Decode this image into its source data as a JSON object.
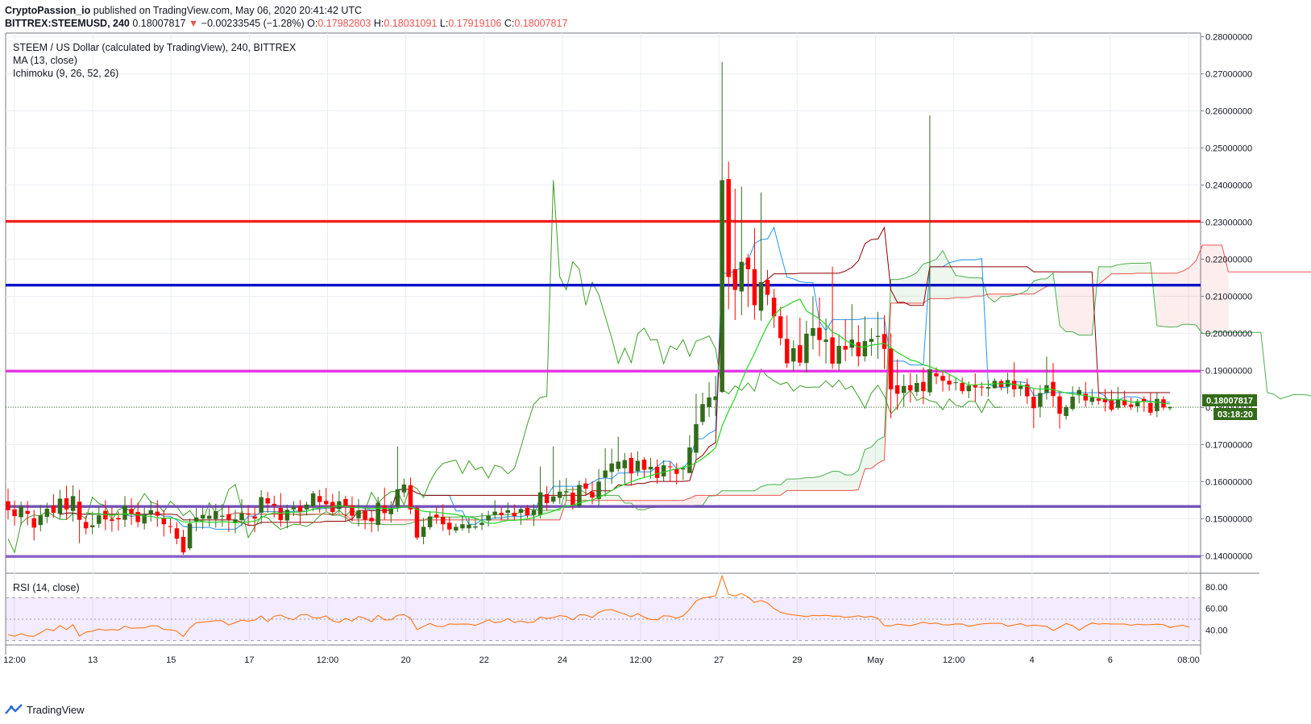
{
  "header": {
    "author": "CryptoPassion_io",
    "published": " published on TradingView.com, May 06, 2020 20:41:42 UTC",
    "symbol": "BITTREX:STEEMUSD, 240",
    "last": "0.18007817",
    "change": "−0.00233545 (−1.28%)",
    "o_label": "O:",
    "o_value": "0.17982803",
    "h_label": "H:",
    "h_value": "0.18031091",
    "l_label": "L:",
    "l_value": "0.17919106",
    "c_label": "C:",
    "c_value": "0.18007817"
  },
  "legend": {
    "title": "STEEM / US Dollar (calculated by TradingView), 240, BITTREX",
    "ma": "MA (13, close)",
    "ichimoku": "Ichimoku (9, 26, 52, 26)",
    "rsi": "RSI (14, close)"
  },
  "price_tag": "0.18007817",
  "countdown_tag": "03:18:20",
  "footer": {
    "brand": "TradingView"
  },
  "colors": {
    "up": "#336b1a",
    "down": "#ff0000",
    "ma": "#23d623",
    "tenkan": "#2196f3",
    "kijun": "#8b0000",
    "chikou": "#3f9e28",
    "spanA": "#4caf50",
    "spanB": "#ef5350",
    "rsi": "#ff6d00"
  },
  "chart_data": {
    "type": "candlestick",
    "symbol": "BITTREX:STEEMUSD",
    "timeframe": "240",
    "x_ticks": [
      "12:00",
      "13",
      "15",
      "17",
      "12:00",
      "20",
      "22",
      "24",
      "12:00",
      "27",
      "29",
      "May",
      "12:00",
      "4",
      "6",
      "08:00"
    ],
    "price_axis": {
      "ylim": [
        0.1355,
        0.281
      ],
      "ticks": [
        0.14,
        0.15,
        0.16,
        0.17,
        0.18,
        0.19,
        0.2,
        0.21,
        0.22,
        0.23,
        0.24,
        0.25,
        0.26,
        0.27,
        0.28
      ]
    },
    "price_axis_labels": [
      "0.14000000",
      "0.15000000",
      "0.16000000",
      "0.17000000",
      "0.18000000",
      "0.19000000",
      "0.20000000",
      "0.21000000",
      "0.22000000",
      "0.23000000",
      "0.24000000",
      "0.25000000",
      "0.26000000",
      "0.27000000",
      "0.28000000"
    ],
    "horizontal_levels": [
      {
        "price": 0.2302,
        "color": "#f21e1e"
      },
      {
        "price": 0.213,
        "color": "#0b12c7"
      },
      {
        "price": 0.1898,
        "color": "#e535e5"
      },
      {
        "price": 0.1533,
        "color": "#7350b8"
      },
      {
        "price": 0.1398,
        "color": "#8a5fc7"
      }
    ],
    "last_price": 0.18007817,
    "candles": [
      [
        0.1547,
        0.1523,
        0.1581,
        0.1498
      ],
      [
        0.1525,
        0.1507,
        0.1549,
        0.1481
      ],
      [
        0.1504,
        0.1533,
        0.1546,
        0.1483
      ],
      [
        0.1521,
        0.1513,
        0.1548,
        0.1482
      ],
      [
        0.1501,
        0.1476,
        0.1524,
        0.1441
      ],
      [
        0.1483,
        0.1509,
        0.1537,
        0.1466
      ],
      [
        0.1505,
        0.1527,
        0.1543,
        0.1488
      ],
      [
        0.1535,
        0.1516,
        0.1566,
        0.1503
      ],
      [
        0.1513,
        0.1554,
        0.1578,
        0.15
      ],
      [
        0.1555,
        0.1525,
        0.1589,
        0.1497
      ],
      [
        0.1521,
        0.1561,
        0.159,
        0.1492
      ],
      [
        0.1546,
        0.1497,
        0.1578,
        0.1434
      ],
      [
        0.1491,
        0.1474,
        0.1507,
        0.1458
      ],
      [
        0.1477,
        0.1482,
        0.1519,
        0.1458
      ],
      [
        0.1486,
        0.1509,
        0.1531,
        0.1475
      ],
      [
        0.1521,
        0.1498,
        0.155,
        0.1469
      ],
      [
        0.1498,
        0.1494,
        0.1531,
        0.1465
      ],
      [
        0.1502,
        0.1498,
        0.1519,
        0.1468
      ],
      [
        0.1497,
        0.1535,
        0.1561,
        0.1477
      ],
      [
        0.1526,
        0.1513,
        0.1555,
        0.1483
      ],
      [
        0.1518,
        0.1491,
        0.1543,
        0.1477
      ],
      [
        0.1487,
        0.1511,
        0.153,
        0.1471
      ],
      [
        0.1513,
        0.1523,
        0.1548,
        0.1492
      ],
      [
        0.1519,
        0.1508,
        0.155,
        0.1478
      ],
      [
        0.1502,
        0.1485,
        0.1523,
        0.1452
      ],
      [
        0.148,
        0.1478,
        0.1502,
        0.146
      ],
      [
        0.1474,
        0.1446,
        0.149,
        0.1431
      ],
      [
        0.1451,
        0.1409,
        0.147,
        0.1403
      ],
      [
        0.142,
        0.1487,
        0.15,
        0.1415
      ],
      [
        0.1493,
        0.1503,
        0.1529,
        0.1466
      ],
      [
        0.1501,
        0.151,
        0.1531,
        0.1472
      ],
      [
        0.15,
        0.1508,
        0.1528,
        0.1479
      ],
      [
        0.1499,
        0.152,
        0.154,
        0.1476
      ],
      [
        0.1505,
        0.1508,
        0.1539,
        0.1478
      ],
      [
        0.1512,
        0.1498,
        0.1535,
        0.1464
      ],
      [
        0.1488,
        0.1498,
        0.1524,
        0.1461
      ],
      [
        0.1496,
        0.1514,
        0.1553,
        0.1479
      ],
      [
        0.1514,
        0.1511,
        0.1537,
        0.1481
      ],
      [
        0.1506,
        0.15,
        0.1531,
        0.1464
      ],
      [
        0.1516,
        0.1558,
        0.1577,
        0.1486
      ],
      [
        0.1555,
        0.1541,
        0.1572,
        0.1516
      ],
      [
        0.154,
        0.1535,
        0.1562,
        0.1503
      ],
      [
        0.1529,
        0.1496,
        0.1569,
        0.1478
      ],
      [
        0.1495,
        0.1524,
        0.1538,
        0.1474
      ],
      [
        0.1525,
        0.1531,
        0.1547,
        0.1507
      ],
      [
        0.1534,
        0.1517,
        0.155,
        0.1485
      ],
      [
        0.1525,
        0.1538,
        0.1546,
        0.1508
      ],
      [
        0.1534,
        0.1568,
        0.1575,
        0.152
      ],
      [
        0.1561,
        0.1545,
        0.1578,
        0.1516
      ],
      [
        0.1548,
        0.1539,
        0.1583,
        0.1521
      ],
      [
        0.1545,
        0.1518,
        0.1567,
        0.1508
      ],
      [
        0.1526,
        0.1547,
        0.1575,
        0.1515
      ],
      [
        0.1553,
        0.1532,
        0.1562,
        0.1495
      ],
      [
        0.1536,
        0.1508,
        0.156,
        0.1493
      ],
      [
        0.1501,
        0.1522,
        0.1553,
        0.1479
      ],
      [
        0.1521,
        0.1497,
        0.1532,
        0.1472
      ],
      [
        0.1502,
        0.1493,
        0.1523,
        0.1463
      ],
      [
        0.1483,
        0.1543,
        0.1559,
        0.1466
      ],
      [
        0.1535,
        0.1515,
        0.1584,
        0.1497
      ],
      [
        0.1512,
        0.1528,
        0.1547,
        0.149
      ],
      [
        0.1532,
        0.1579,
        0.1695,
        0.1518
      ],
      [
        0.1571,
        0.1592,
        0.1608,
        0.1558
      ],
      [
        0.159,
        0.1525,
        0.1611,
        0.1512
      ],
      [
        0.1529,
        0.1449,
        0.1534,
        0.1443
      ],
      [
        0.1451,
        0.1478,
        0.1502,
        0.1431
      ],
      [
        0.1477,
        0.1506,
        0.152,
        0.147
      ],
      [
        0.1511,
        0.1503,
        0.1532,
        0.1486
      ],
      [
        0.1505,
        0.1485,
        0.1539,
        0.1467
      ],
      [
        0.1489,
        0.1471,
        0.1505,
        0.1455
      ],
      [
        0.1468,
        0.1478,
        0.1487,
        0.1461
      ],
      [
        0.1474,
        0.1485,
        0.1508,
        0.1468
      ],
      [
        0.1474,
        0.1484,
        0.1503,
        0.1461
      ],
      [
        0.1476,
        0.1479,
        0.1499,
        0.1471
      ],
      [
        0.1483,
        0.1489,
        0.1516,
        0.1469
      ],
      [
        0.1495,
        0.1508,
        0.1521,
        0.1479
      ],
      [
        0.151,
        0.1519,
        0.155,
        0.15
      ],
      [
        0.1516,
        0.151,
        0.1531,
        0.1495
      ],
      [
        0.1516,
        0.1523,
        0.1544,
        0.1498
      ],
      [
        0.1516,
        0.1507,
        0.1538,
        0.1497
      ],
      [
        0.1516,
        0.1526,
        0.153,
        0.1483
      ],
      [
        0.1529,
        0.1509,
        0.1537,
        0.1502
      ],
      [
        0.151,
        0.1523,
        0.1539,
        0.148
      ],
      [
        0.151,
        0.1571,
        0.1641,
        0.1501
      ],
      [
        0.1566,
        0.1542,
        0.1588,
        0.1521
      ],
      [
        0.1546,
        0.156,
        0.1695,
        0.154
      ],
      [
        0.1556,
        0.1573,
        0.1604,
        0.154
      ],
      [
        0.1571,
        0.1574,
        0.161,
        0.1548
      ],
      [
        0.157,
        0.1537,
        0.1585,
        0.1525
      ],
      [
        0.1534,
        0.1591,
        0.1603,
        0.1529
      ],
      [
        0.1595,
        0.1581,
        0.1609,
        0.1562
      ],
      [
        0.1572,
        0.1557,
        0.1601,
        0.1539
      ],
      [
        0.1553,
        0.16,
        0.1634,
        0.1532
      ],
      [
        0.1611,
        0.163,
        0.169,
        0.156
      ],
      [
        0.1626,
        0.1649,
        0.1689,
        0.1594
      ],
      [
        0.1634,
        0.1654,
        0.1721,
        0.1626
      ],
      [
        0.1636,
        0.1658,
        0.1677,
        0.1594
      ],
      [
        0.1664,
        0.1622,
        0.1678,
        0.1589
      ],
      [
        0.1628,
        0.1656,
        0.1682,
        0.1615
      ],
      [
        0.1659,
        0.1632,
        0.1666,
        0.161
      ],
      [
        0.1633,
        0.164,
        0.1664,
        0.1608
      ],
      [
        0.164,
        0.161,
        0.166,
        0.1594
      ],
      [
        0.1614,
        0.1644,
        0.1658,
        0.1601
      ],
      [
        0.1641,
        0.1639,
        0.1655,
        0.16
      ],
      [
        0.1634,
        0.1621,
        0.165,
        0.1592
      ],
      [
        0.1633,
        0.1636,
        0.1643,
        0.1604
      ],
      [
        0.1623,
        0.1692,
        0.1725,
        0.1624
      ],
      [
        0.1678,
        0.1755,
        0.1837,
        0.1659
      ],
      [
        0.1761,
        0.1809,
        0.184,
        0.1752
      ],
      [
        0.1801,
        0.1827,
        0.1868,
        0.1774
      ],
      [
        0.182,
        0.183,
        0.1885,
        0.1777
      ],
      [
        0.1842,
        0.2413,
        0.2732,
        0.1839
      ],
      [
        0.2416,
        0.2152,
        0.2463,
        0.2065
      ],
      [
        0.2173,
        0.2117,
        0.239,
        0.2036
      ],
      [
        0.2113,
        0.2193,
        0.2396,
        0.2049
      ],
      [
        0.2204,
        0.2173,
        0.2214,
        0.2071
      ],
      [
        0.2173,
        0.2076,
        0.2284,
        0.2037
      ],
      [
        0.2061,
        0.2138,
        0.238,
        0.2034
      ],
      [
        0.2144,
        0.2104,
        0.2171,
        0.2076
      ],
      [
        0.2096,
        0.2046,
        0.212,
        0.2015
      ],
      [
        0.2046,
        0.1987,
        0.2072,
        0.1968
      ],
      [
        0.1985,
        0.1919,
        0.2048,
        0.1907
      ],
      [
        0.1924,
        0.196,
        0.1981,
        0.1898
      ],
      [
        0.1968,
        0.1921,
        0.2042,
        0.1911
      ],
      [
        0.192,
        0.1999,
        0.2034,
        0.1894
      ],
      [
        0.1993,
        0.2014,
        0.21,
        0.1956
      ],
      [
        0.2015,
        0.1982,
        0.2097,
        0.1938
      ],
      [
        0.1977,
        0.1983,
        0.204,
        0.1918
      ],
      [
        0.1989,
        0.1918,
        0.218,
        0.1904
      ],
      [
        0.1918,
        0.1966,
        0.1997,
        0.19
      ],
      [
        0.1966,
        0.1956,
        0.2038,
        0.1925
      ],
      [
        0.1961,
        0.1983,
        0.2079,
        0.1938
      ],
      [
        0.1976,
        0.1938,
        0.2022,
        0.1911
      ],
      [
        0.1938,
        0.1979,
        0.2046,
        0.1924
      ],
      [
        0.1977,
        0.1985,
        0.2014,
        0.1939
      ],
      [
        0.199,
        0.1993,
        0.2058,
        0.1931
      ],
      [
        0.1998,
        0.1958,
        0.2049,
        0.1904
      ],
      [
        0.1959,
        0.1849,
        0.2,
        0.1771
      ],
      [
        0.186,
        0.1837,
        0.193,
        0.1793
      ],
      [
        0.1839,
        0.1858,
        0.1889,
        0.1802
      ],
      [
        0.186,
        0.1846,
        0.1893,
        0.1813
      ],
      [
        0.1842,
        0.1866,
        0.189,
        0.1831
      ],
      [
        0.1869,
        0.1844,
        0.1908,
        0.1809
      ],
      [
        0.1841,
        0.1903,
        0.2588,
        0.1831
      ],
      [
        0.1892,
        0.1884,
        0.1908,
        0.1863
      ],
      [
        0.1885,
        0.1872,
        0.1898,
        0.1843
      ],
      [
        0.1872,
        0.1862,
        0.1889,
        0.1845
      ],
      [
        0.1867,
        0.1868,
        0.1881,
        0.1846
      ],
      [
        0.1866,
        0.1844,
        0.1881,
        0.1836
      ],
      [
        0.1844,
        0.1859,
        0.187,
        0.1825
      ],
      [
        0.186,
        0.1854,
        0.1892,
        0.1816
      ],
      [
        0.1856,
        0.1855,
        0.1868,
        0.1831
      ],
      [
        0.1851,
        0.1855,
        0.1873,
        0.1829
      ],
      [
        0.1852,
        0.1872,
        0.1879,
        0.1851
      ],
      [
        0.1871,
        0.1855,
        0.1876,
        0.1846
      ],
      [
        0.1856,
        0.1874,
        0.1894,
        0.1837
      ],
      [
        0.1872,
        0.1849,
        0.1922,
        0.1828
      ],
      [
        0.185,
        0.1858,
        0.187,
        0.1831
      ],
      [
        0.1862,
        0.183,
        0.1878,
        0.181
      ],
      [
        0.1829,
        0.1798,
        0.1853,
        0.1744
      ],
      [
        0.1802,
        0.1839,
        0.1861,
        0.1773
      ],
      [
        0.1839,
        0.186,
        0.1937,
        0.1821
      ],
      [
        0.1869,
        0.1831,
        0.192,
        0.1801
      ],
      [
        0.183,
        0.1783,
        0.1844,
        0.1743
      ],
      [
        0.1777,
        0.1801,
        0.1807,
        0.1767
      ],
      [
        0.1796,
        0.1829,
        0.1857,
        0.1791
      ],
      [
        0.1833,
        0.1847,
        0.1856,
        0.1811
      ],
      [
        0.1837,
        0.1819,
        0.1869,
        0.1802
      ],
      [
        0.1815,
        0.1827,
        0.185,
        0.1805
      ],
      [
        0.1824,
        0.1818,
        0.184,
        0.1808
      ],
      [
        0.1824,
        0.1814,
        0.185,
        0.1789
      ],
      [
        0.1822,
        0.1794,
        0.1847,
        0.1789
      ],
      [
        0.1799,
        0.1823,
        0.1855,
        0.1794
      ],
      [
        0.1821,
        0.1806,
        0.1845,
        0.18
      ],
      [
        0.1808,
        0.1802,
        0.1827,
        0.1793
      ],
      [
        0.1803,
        0.1817,
        0.1823,
        0.1787
      ],
      [
        0.1823,
        0.1816,
        0.183,
        0.1788
      ],
      [
        0.1812,
        0.1786,
        0.184,
        0.1778
      ],
      [
        0.179,
        0.1823,
        0.1839,
        0.1774
      ],
      [
        0.1822,
        0.18,
        0.183,
        0.1793
      ],
      [
        0.1798,
        0.1801,
        0.1803,
        0.1792
      ]
    ],
    "rsi": {
      "levels": [
        30,
        50,
        70
      ],
      "ticks": [
        40,
        60,
        80
      ],
      "tick_labels": [
        "40.00",
        "60.00",
        "80.00"
      ],
      "ylim": [
        26,
        92
      ],
      "values": [
        35.6,
        34.1,
        36.5,
        34.5,
        34.1,
        37.5,
        40.9,
        39.3,
        44.0,
        40.3,
        45.0,
        34.3,
        38.0,
        38.8,
        40.8,
        39.7,
        40.3,
        39.8,
        43.5,
        41.5,
        41.8,
        41.9,
        43.8,
        43.8,
        40.4,
        40.2,
        38.9,
        33.9,
        41.8,
        46.7,
        47.3,
        48.0,
        48.6,
        48.6,
        44.5,
        47.0,
        49.0,
        48.2,
        49.2,
        52.9,
        47.7,
        52.8,
        53.8,
        51.0,
        49.6,
        53.9,
        54.5,
        51.4,
        51.1,
        53.1,
        48.5,
        46.9,
        50.9,
        48.3,
        52.5,
        50.9,
        47.5,
        53.7,
        49.3,
        49.5,
        53.7,
        54.2,
        50.9,
        40.3,
        43.2,
        46.0,
        43.5,
        43.0,
        45.6,
        45.3,
        45.5,
        45.4,
        44.3,
        46.5,
        49.3,
        46.8,
        47.6,
        50.5,
        46.9,
        48.4,
        46.7,
        47.4,
        52.0,
        50.7,
        51.5,
        53.3,
        52.6,
        49.3,
        54.1,
        53.8,
        51.6,
        56.3,
        58.5,
        58.9,
        56.6,
        54.7,
        52.2,
        55.2,
        51.9,
        49.7,
        49.5,
        53.2,
        52.8,
        51.0,
        53.1,
        59.1,
        67.0,
        69.7,
        70.7,
        71.7,
        90.3,
        73.0,
        71.6,
        74.0,
        70.5,
        65.6,
        67.5,
        65.1,
        59.9,
        56.4,
        54.9,
        54.0,
        53.3,
        52.3,
        53.5,
        53.2,
        53.7,
        52.8,
        52.9,
        51.7,
        52.2,
        53.2,
        51.9,
        52.6,
        50.9,
        44.0,
        43.8,
        45.4,
        44.7,
        43.9,
        45.5,
        47.3,
        45.9,
        46.4,
        44.8,
        44.7,
        45.6,
        45.5,
        43.5,
        44.6,
        45.6,
        46.0,
        46.2,
        46.2,
        43.5,
        44.7,
        45.9,
        43.6,
        44.6,
        43.9,
        43.3,
        39.6,
        42.5,
        46.0,
        43.9,
        39.7,
        43.6,
        46.5,
        45.4,
        45.9,
        45.5,
        45.5,
        45.5,
        44.3,
        45.3,
        44.8,
        45.0,
        45.4,
        44.9,
        42.3,
        43.4,
        44.4,
        42.5
      ]
    }
  }
}
